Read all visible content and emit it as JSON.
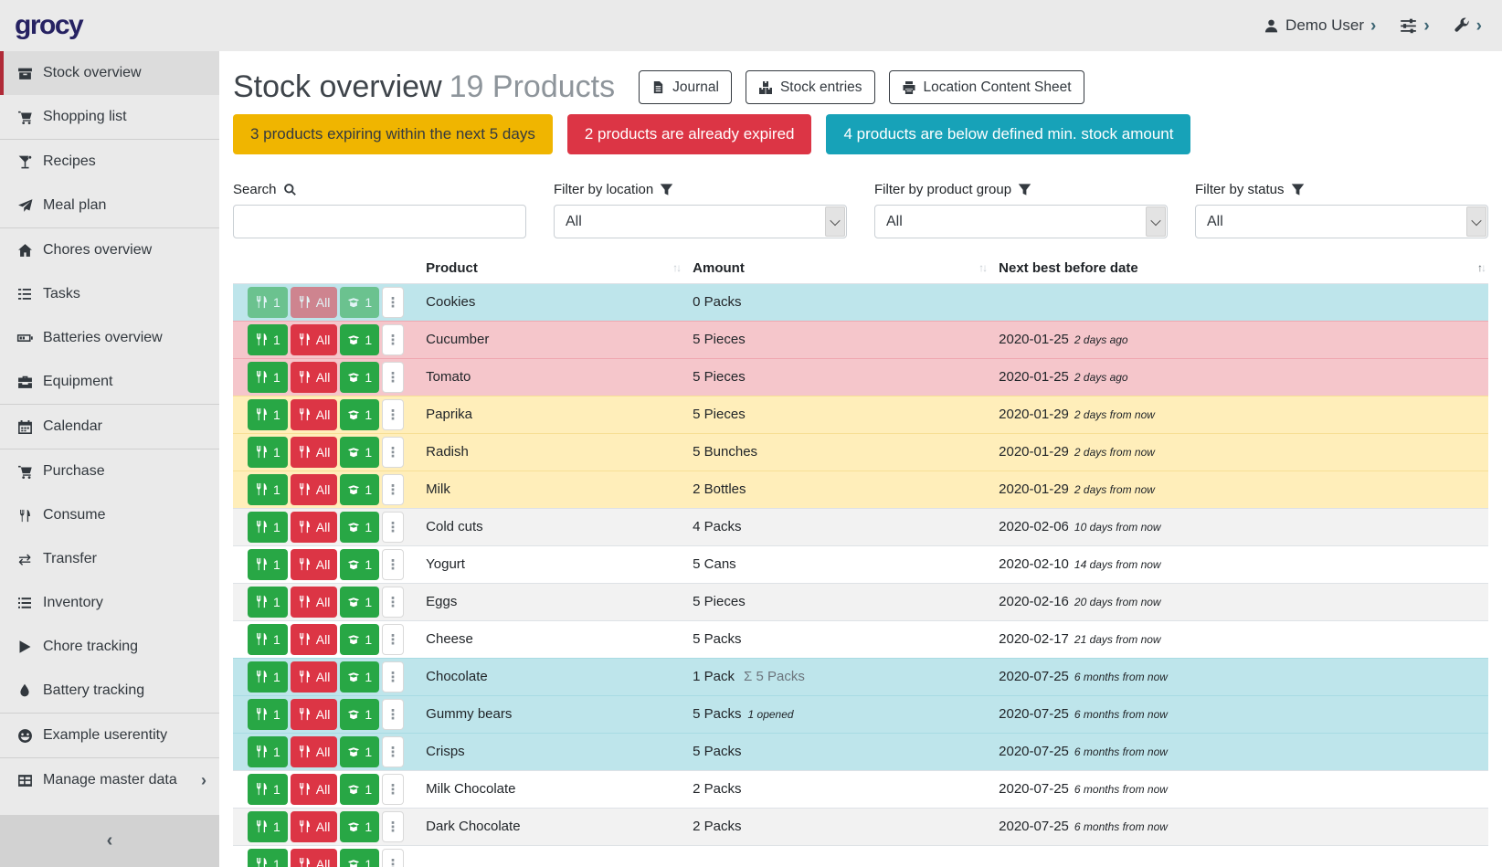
{
  "brand": "grocy",
  "navbar": {
    "user_label": "Demo User",
    "caret": "›"
  },
  "sidebar": {
    "collapse_glyph": "‹",
    "submenu_glyph": "›",
    "groups": [
      {
        "items": [
          {
            "label": "Stock overview",
            "icon": "box-icon",
            "active": true
          },
          {
            "label": "Shopping list",
            "icon": "cart-icon"
          }
        ]
      },
      {
        "items": [
          {
            "label": "Recipes",
            "icon": "cocktail-icon"
          },
          {
            "label": "Meal plan",
            "icon": "paper-plane-icon"
          }
        ]
      },
      {
        "items": [
          {
            "label": "Chores overview",
            "icon": "home-icon"
          },
          {
            "label": "Tasks",
            "icon": "tasks-icon"
          },
          {
            "label": "Batteries overview",
            "icon": "battery-icon"
          },
          {
            "label": "Equipment",
            "icon": "toolbox-icon"
          }
        ]
      },
      {
        "items": [
          {
            "label": "Calendar",
            "icon": "calendar-icon"
          }
        ]
      },
      {
        "items": [
          {
            "label": "Purchase",
            "icon": "cart-icon"
          },
          {
            "label": "Consume",
            "icon": "utensils-icon"
          },
          {
            "label": "Transfer",
            "icon": "exchange-icon"
          },
          {
            "label": "Inventory",
            "icon": "list-icon"
          },
          {
            "label": "Chore tracking",
            "icon": "play-icon"
          },
          {
            "label": "Battery tracking",
            "icon": "drop-icon"
          }
        ]
      },
      {
        "items": [
          {
            "label": "Example userentity",
            "icon": "smiley-icon"
          }
        ]
      },
      {
        "items": [
          {
            "label": "Manage master data",
            "icon": "table-icon",
            "submenu": true
          }
        ]
      }
    ]
  },
  "header": {
    "title": "Stock overview",
    "subtitle": "19 Products",
    "buttons": [
      {
        "label": "Journal",
        "icon": "file-icon"
      },
      {
        "label": "Stock entries",
        "icon": "boxes-icon"
      },
      {
        "label": "Location Content Sheet",
        "icon": "print-icon"
      }
    ]
  },
  "alerts": [
    {
      "text": "3 products expiring within the next 5 days",
      "bg": "#f0b500",
      "fg": "#343a40"
    },
    {
      "text": "2 products are already expired",
      "bg": "#dc3545",
      "fg": "#ffffff"
    },
    {
      "text": "4 products are below defined min. stock amount",
      "bg": "#17a2b8",
      "fg": "#ffffff"
    }
  ],
  "filters": {
    "search_label": "Search",
    "search_value": "",
    "location_label": "Filter by location",
    "location_value": "All",
    "product_group_label": "Filter by product group",
    "product_group_value": "All",
    "status_label": "Filter by status",
    "status_value": "All"
  },
  "table": {
    "sort_up_glyph": "↑",
    "sort_down_glyph": "↓",
    "sum_glyph": "Σ",
    "columns": [
      {
        "label": "Product",
        "sorted": null
      },
      {
        "label": "Amount",
        "sorted": null
      },
      {
        "label": "Next best before date",
        "sorted": "asc"
      }
    ],
    "action_labels": {
      "consume_one": "1",
      "consume_all": "All",
      "open_one": "1",
      "more": "⋮"
    },
    "rows": [
      {
        "product": "Cookies",
        "amount": "0 Packs",
        "date": "",
        "date_rel": "",
        "row_color": "info",
        "actions_disabled": true
      },
      {
        "product": "Cucumber",
        "amount": "5 Pieces",
        "date": "2020-01-25",
        "date_rel": "2 days ago",
        "row_color": "danger"
      },
      {
        "product": "Tomato",
        "amount": "5 Pieces",
        "date": "2020-01-25",
        "date_rel": "2 days ago",
        "row_color": "danger"
      },
      {
        "product": "Paprika",
        "amount": "5 Pieces",
        "date": "2020-01-29",
        "date_rel": "2 days from now",
        "row_color": "warning"
      },
      {
        "product": "Radish",
        "amount": "5 Bunches",
        "date": "2020-01-29",
        "date_rel": "2 days from now",
        "row_color": "warning"
      },
      {
        "product": "Milk",
        "amount": "2 Bottles",
        "date": "2020-01-29",
        "date_rel": "2 days from now",
        "row_color": "warning"
      },
      {
        "product": "Cold cuts",
        "amount": "4 Packs",
        "date": "2020-02-06",
        "date_rel": "10 days from now",
        "row_color": "stripe"
      },
      {
        "product": "Yogurt",
        "amount": "5 Cans",
        "date": "2020-02-10",
        "date_rel": "14 days from now",
        "row_color": "none"
      },
      {
        "product": "Eggs",
        "amount": "5 Pieces",
        "date": "2020-02-16",
        "date_rel": "20 days from now",
        "row_color": "stripe"
      },
      {
        "product": "Cheese",
        "amount": "5 Packs",
        "date": "2020-02-17",
        "date_rel": "21 days from now",
        "row_color": "none"
      },
      {
        "product": "Chocolate",
        "amount": "1 Pack",
        "amount_sum": "5 Packs",
        "date": "2020-07-25",
        "date_rel": "6 months from now",
        "row_color": "info"
      },
      {
        "product": "Gummy bears",
        "amount": "5 Packs",
        "amount_note": "1 opened",
        "date": "2020-07-25",
        "date_rel": "6 months from now",
        "row_color": "info"
      },
      {
        "product": "Crisps",
        "amount": "5 Packs",
        "date": "2020-07-25",
        "date_rel": "6 months from now",
        "row_color": "info"
      },
      {
        "product": "Milk Chocolate",
        "amount": "2 Packs",
        "date": "2020-07-25",
        "date_rel": "6 months from now",
        "row_color": "none"
      },
      {
        "product": "Dark Chocolate",
        "amount": "2 Packs",
        "date": "2020-07-25",
        "date_rel": "6 months from now",
        "row_color": "stripe"
      },
      {
        "product": "",
        "amount": "",
        "date": "",
        "date_rel": "",
        "row_color": "none",
        "partial": true
      }
    ]
  }
}
